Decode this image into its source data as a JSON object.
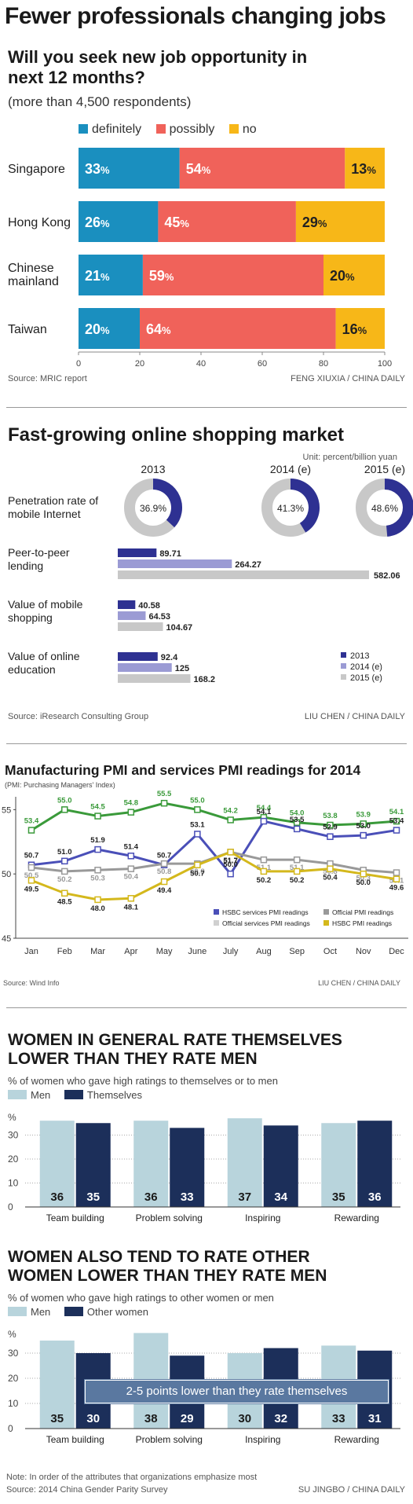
{
  "jobs": {
    "title": "Fewer professionals changing jobs",
    "question": "Will you seek new job opportunity in next 12 months?",
    "note": "(more than 4,500 respondents)",
    "source": "Source: MRIC report",
    "credit": "FENG XIUXIA / CHINA DAILY",
    "colors": {
      "definitely": "#1a8fbf",
      "possibly": "#f0625a",
      "no": "#f7b718"
    }
  },
  "shopping": {
    "title": "Fast-growing online shopping market",
    "unit": "Unit: percent/billion yuan",
    "years": [
      "2013",
      "2014 (e)",
      "2015 (e)"
    ],
    "rows": [
      "Penetration rate of mobile Internet",
      "Peer-to-peer lending",
      "Value of mobile shopping",
      "Value of online education"
    ],
    "source": "Source: iResearch Consulting Group",
    "credit": "LIU CHEN / CHINA DAILY",
    "colors": {
      "2013": "#2e3192",
      "2014 (e)": "#9b9bd4",
      "2015 (e)": "#c8c8c8"
    }
  },
  "pmi": {
    "title": "Manufacturing PMI and services PMI readings for 2014",
    "subtitle": "(PMI: Purchasing Managers' Index)",
    "source": "Source: Wind Info",
    "credit": "LIU CHEN / CHINA DAILY",
    "colors": {
      "hsbc_services": "#4a4fb8",
      "official_services": "#3a9a3a",
      "official": "#999999",
      "hsbc": "#d4b81c",
      "official_services_swatch": "#d0d0d0"
    }
  },
  "women": {
    "title1": "WOMEN IN GENERAL RATE THEMSELVES LOWER THAN THEY RATE MEN",
    "sub1": "% of women who gave high ratings to themselves or to men",
    "title2": "WOMEN ALSO TEND TO RATE OTHER WOMEN LOWER THAN THEY RATE MEN",
    "sub2": "% of women who gave high ratings to other women or men",
    "callout": "2-5 points lower than they rate themselves",
    "note": "Note: In order of the attributes that organizations emphasize most",
    "source": "Source: 2014 China Gender Parity Survey",
    "credit": "SU JINGBO / CHINA DAILY",
    "colors": {
      "men": "#b8d4dc",
      "dark": "#1c2f5a",
      "callout": "#5a78a0"
    }
  },
  "chart_data": [
    {
      "type": "bar",
      "stacked": true,
      "orientation": "horizontal",
      "categories": [
        "Singapore",
        "Hong Kong",
        "Chinese mainland",
        "Taiwan"
      ],
      "series": [
        {
          "name": "definitely",
          "values": [
            33,
            26,
            21,
            20
          ]
        },
        {
          "name": "possibly",
          "values": [
            54,
            45,
            59,
            64
          ]
        },
        {
          "name": "no",
          "values": [
            13,
            29,
            20,
            16
          ]
        }
      ],
      "value_suffix": "%",
      "xticks": [
        0,
        20,
        40,
        60,
        80,
        100
      ],
      "xlim": [
        0,
        100
      ]
    },
    {
      "type": "pie",
      "chart": "donut",
      "label": "Penetration rate of mobile Internet",
      "categories": [
        "2013",
        "2014 (e)",
        "2015 (e)"
      ],
      "values": [
        36.9,
        41.3,
        48.6
      ],
      "value_suffix": "%"
    },
    {
      "type": "bar",
      "orientation": "horizontal",
      "categories": [
        "Peer-to-peer lending",
        "Value of mobile shopping",
        "Value of online education"
      ],
      "series": [
        {
          "name": "2013",
          "values": [
            89.71,
            40.58,
            92.4
          ]
        },
        {
          "name": "2014 (e)",
          "values": [
            264.27,
            64.53,
            125
          ]
        },
        {
          "name": "2015 (e)",
          "values": [
            582.06,
            104.67,
            168.2
          ]
        }
      ],
      "value_labels": [
        [
          "89.71",
          "264.27",
          "582.06"
        ],
        [
          "40.58",
          "64.53",
          "104.67"
        ],
        [
          "92.4",
          "125",
          "168.2"
        ]
      ]
    },
    {
      "type": "line",
      "categories": [
        "Jan",
        "Feb",
        "Mar",
        "Apr",
        "May",
        "June",
        "July",
        "Aug",
        "Sep",
        "Oct",
        "Nov",
        "Dec"
      ],
      "ylim": [
        45,
        56
      ],
      "yticks": [
        45,
        50,
        55
      ],
      "series": [
        {
          "name": "Official services PMI readings",
          "values": [
            53.4,
            55.0,
            54.5,
            54.8,
            55.5,
            55.0,
            54.2,
            54.4,
            54.0,
            53.8,
            53.9,
            54.1
          ]
        },
        {
          "name": "HSBC services PMI readings",
          "values": [
            50.7,
            51.0,
            51.9,
            51.4,
            50.7,
            53.1,
            50.0,
            54.1,
            53.5,
            52.9,
            53.0,
            53.4
          ]
        },
        {
          "name": "Official PMI readings",
          "values": [
            50.5,
            50.2,
            50.3,
            50.4,
            50.8,
            50.8,
            51.7,
            51.1,
            51.1,
            50.8,
            50.3,
            50.1
          ]
        },
        {
          "name": "HSBC PMI readings",
          "values": [
            49.5,
            48.5,
            48.0,
            48.1,
            49.4,
            50.7,
            51.7,
            50.2,
            50.2,
            50.4,
            50.0,
            49.6
          ]
        }
      ],
      "legend": [
        "HSBC services PMI readings",
        "Official PMI readings",
        "Official services PMI readings",
        "HSBC PMI readings"
      ]
    },
    {
      "type": "bar",
      "categories": [
        "Team building",
        "Problem solving",
        "Inspiring",
        "Rewarding"
      ],
      "series": [
        {
          "name": "Men",
          "values": [
            36,
            36,
            37,
            35
          ]
        },
        {
          "name": "Themselves",
          "values": [
            35,
            33,
            34,
            36
          ]
        }
      ],
      "yticks": [
        0,
        10,
        20,
        30
      ],
      "ylabel": "%",
      "ylim": [
        0,
        40
      ]
    },
    {
      "type": "bar",
      "categories": [
        "Team building",
        "Problem solving",
        "Inspiring",
        "Rewarding"
      ],
      "series": [
        {
          "name": "Men",
          "values": [
            35,
            38,
            30,
            33
          ]
        },
        {
          "name": "Other women",
          "values": [
            30,
            29,
            32,
            31
          ]
        }
      ],
      "yticks": [
        0,
        10,
        20,
        30
      ],
      "ylabel": "%",
      "ylim": [
        0,
        40
      ]
    }
  ]
}
